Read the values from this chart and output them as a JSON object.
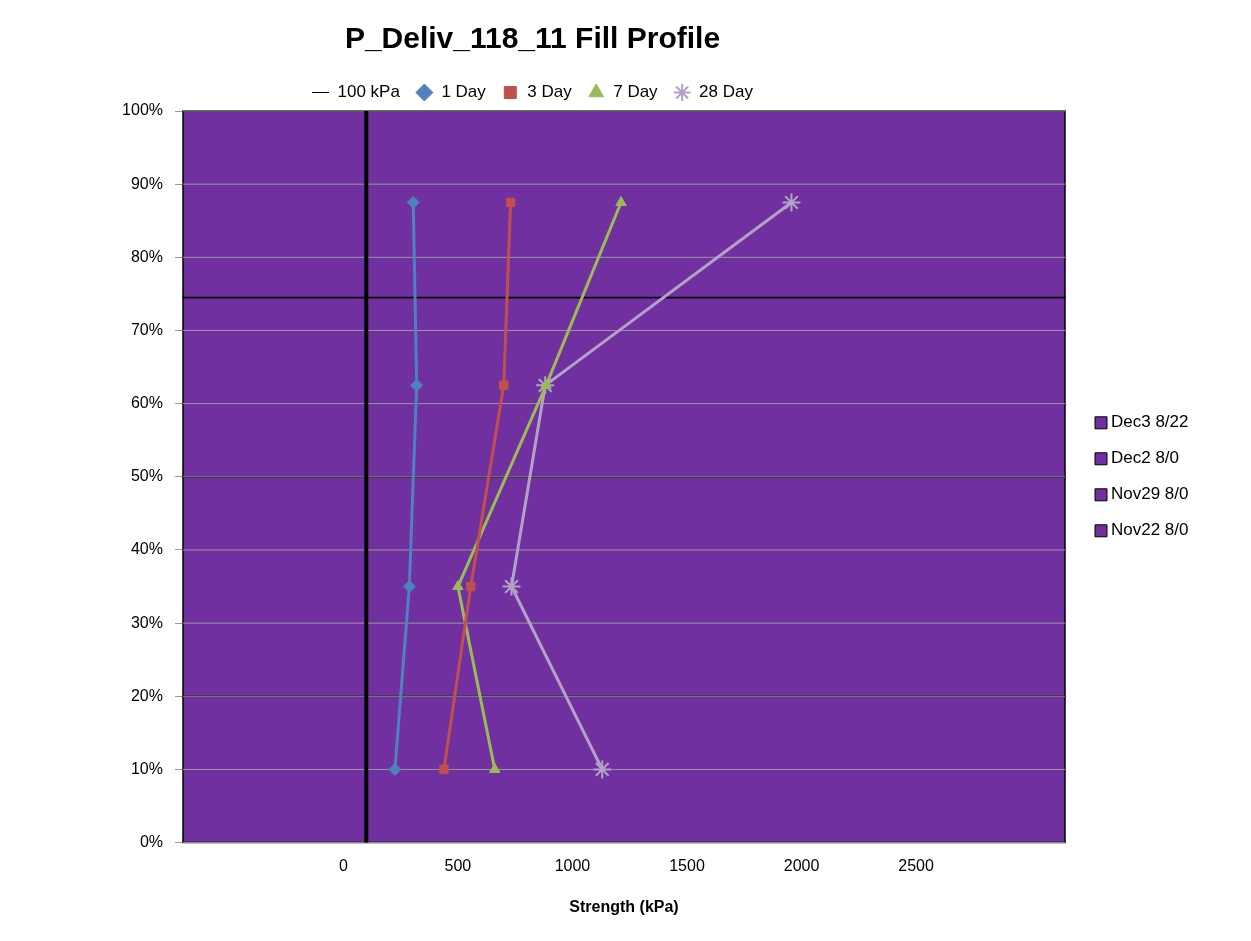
{
  "chart_data": {
    "type": "line",
    "title": "P_Deliv_118_11 Fill Profile",
    "xlabel": "Strength (kPa)",
    "xlim": [
      -700,
      3150
    ],
    "xticks": [
      0,
      500,
      1000,
      1500,
      2000,
      2500
    ],
    "ylim": [
      0,
      100
    ],
    "yticks": [
      {
        "value": 0,
        "label": "0%"
      },
      {
        "value": 10,
        "label": "10%"
      },
      {
        "value": 20,
        "label": "20%"
      },
      {
        "value": 30,
        "label": "30%"
      },
      {
        "value": 40,
        "label": "40%"
      },
      {
        "value": 50,
        "label": "50%"
      },
      {
        "value": 60,
        "label": "60%"
      },
      {
        "value": 70,
        "label": "70%"
      },
      {
        "value": 80,
        "label": "80%"
      },
      {
        "value": 90,
        "label": "90%"
      },
      {
        "value": 100,
        "label": "100%"
      }
    ],
    "grid": "y",
    "legend": "top",
    "bands": [
      {
        "axis": "y",
        "from": 0,
        "to": 20,
        "label": "Nov22 8/0",
        "color": "#7030a0"
      },
      {
        "axis": "y",
        "from": 20,
        "to": 50,
        "label": "Nov29 8/0",
        "color": "#7030a0"
      },
      {
        "axis": "y",
        "from": 50,
        "to": 74.5,
        "label": "Dec2 8/0",
        "color": "#7030a0"
      },
      {
        "axis": "y",
        "from": 74.5,
        "to": 100,
        "label": "Dec3 8/22",
        "color": "#7030a0"
      }
    ],
    "series": [
      {
        "name": "100 kPa",
        "type": "line",
        "x": [
          100,
          100
        ],
        "values": [
          0,
          100
        ],
        "color": "#000000",
        "marker": "none"
      },
      {
        "name": "1 Day",
        "type": "line",
        "x": [
          225,
          288,
          320,
          305
        ],
        "values": [
          10,
          35,
          62.5,
          87.5
        ],
        "color": "#4f81bd",
        "marker": "diamond"
      },
      {
        "name": "3 Day",
        "type": "line",
        "x": [
          439,
          556,
          700,
          730
        ],
        "values": [
          10,
          35,
          62.5,
          87.5
        ],
        "color": "#c0504d",
        "marker": "square"
      },
      {
        "name": "7 Day",
        "type": "line",
        "x": [
          661,
          500,
          885,
          1212
        ],
        "values": [
          10,
          35,
          62.5,
          87.5
        ],
        "color": "#9bbb59",
        "marker": "triangle"
      },
      {
        "name": "28 Day",
        "type": "line",
        "x": [
          1130,
          734,
          881,
          1956
        ],
        "values": [
          10,
          35,
          62.5,
          87.5
        ],
        "color": "#b3a2c7",
        "marker": "cross"
      }
    ]
  }
}
